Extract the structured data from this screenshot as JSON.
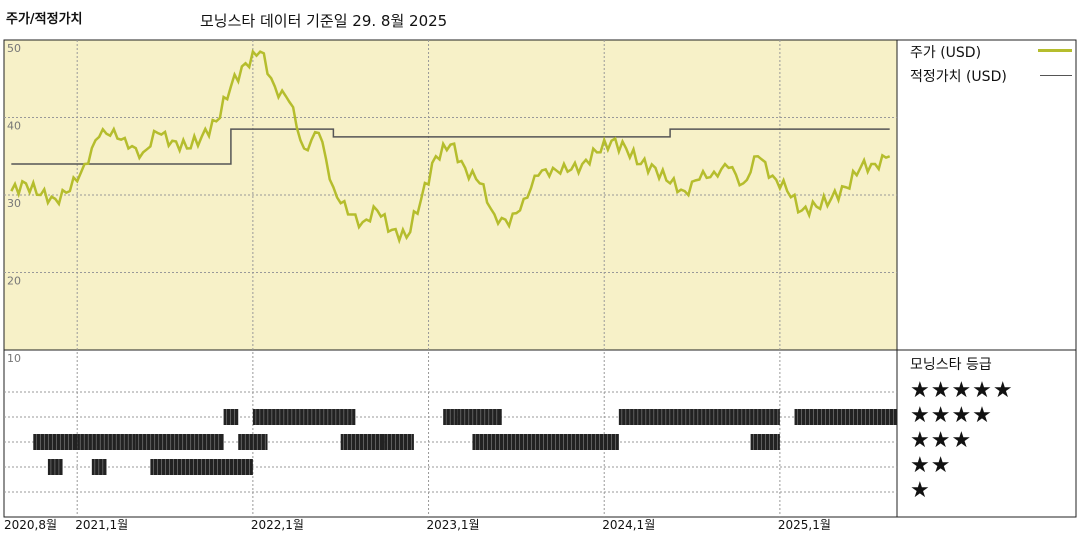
{
  "header": {
    "title": "주가/적정가치",
    "subtitle": "모닝스타 데이터 기준일 29. 8월 2025"
  },
  "legend": {
    "price_label": "주가 (USD)",
    "fair_label": "적정가치 (USD)",
    "price_color": "#b5bd2d",
    "fair_color": "#555555"
  },
  "rating_panel": {
    "title": "모닝스타 등급",
    "stars": [
      "★★★★★",
      "★★★★",
      "★★★",
      "★★",
      "★"
    ]
  },
  "colors": {
    "plot_background": "#f7f1c8",
    "bar": "#222222",
    "grid": "#999999"
  },
  "chart_data": [
    {
      "type": "line",
      "ylim": [
        10,
        50
      ],
      "y_ticks": [
        "50",
        "40",
        "30",
        "20",
        "10"
      ],
      "x_tick_labels": [
        "2020,8월",
        "2021,1월",
        "2022,1월",
        "2023,1월",
        "2024,1월",
        "2025,1월"
      ],
      "grid": true,
      "legend_position": "top-right",
      "series": [
        {
          "name": "주가 (USD)",
          "points": [
            [
              "2020-08",
              30.5
            ],
            [
              "2020-09",
              31.5
            ],
            [
              "2020-10",
              30.0
            ],
            [
              "2020-11",
              29.5
            ],
            [
              "2020-12",
              30.5
            ],
            [
              "2021-01",
              34.0
            ],
            [
              "2021-02",
              37.5
            ],
            [
              "2021-03",
              38.5
            ],
            [
              "2021-04",
              36.0
            ],
            [
              "2021-05",
              35.5
            ],
            [
              "2021-06",
              38.0
            ],
            [
              "2021-07",
              37.0
            ],
            [
              "2021-08",
              36.0
            ],
            [
              "2021-09",
              37.5
            ],
            [
              "2021-10",
              39.5
            ],
            [
              "2021-11",
              44.0
            ],
            [
              "2021-12",
              47.0
            ],
            [
              "2022-01",
              48.5
            ],
            [
              "2022-02",
              44.0
            ],
            [
              "2022-03",
              42.0
            ],
            [
              "2022-04",
              36.0
            ],
            [
              "2022-05",
              38.0
            ],
            [
              "2022-06",
              31.0
            ],
            [
              "2022-07",
              27.5
            ],
            [
              "2022-08",
              26.5
            ],
            [
              "2022-09",
              28.0
            ],
            [
              "2022-10",
              25.5
            ],
            [
              "2022-11",
              24.5
            ],
            [
              "2022-12",
              29.5
            ],
            [
              "2023-01",
              35.0
            ],
            [
              "2023-02",
              36.5
            ],
            [
              "2023-03",
              33.5
            ],
            [
              "2023-04",
              31.5
            ],
            [
              "2023-05",
              27.5
            ],
            [
              "2023-06",
              26.0
            ],
            [
              "2023-07",
              29.5
            ],
            [
              "2023-08",
              32.5
            ],
            [
              "2023-09",
              33.5
            ],
            [
              "2023-10",
              33.0
            ],
            [
              "2023-11",
              34.0
            ],
            [
              "2023-12",
              35.5
            ],
            [
              "2024-01",
              37.0
            ],
            [
              "2024-02",
              36.0
            ],
            [
              "2024-03",
              34.0
            ],
            [
              "2024-04",
              33.5
            ],
            [
              "2024-05",
              31.5
            ],
            [
              "2024-06",
              30.5
            ],
            [
              "2024-07",
              32.0
            ],
            [
              "2024-08",
              33.0
            ],
            [
              "2024-09",
              33.5
            ],
            [
              "2024-10",
              31.5
            ],
            [
              "2024-11",
              35.0
            ],
            [
              "2024-12",
              32.5
            ],
            [
              "2025-01",
              30.5
            ],
            [
              "2025-02",
              28.0
            ],
            [
              "2025-03",
              28.5
            ],
            [
              "2025-04",
              29.5
            ],
            [
              "2025-05",
              31.0
            ],
            [
              "2025-06",
              33.5
            ],
            [
              "2025-07",
              34.0
            ],
            [
              "2025-08",
              35.0
            ]
          ]
        },
        {
          "name": "적정가치 (USD)",
          "points": [
            [
              "2020-08",
              34.0
            ],
            [
              "2021-11",
              34.0
            ],
            [
              "2021-11",
              38.5
            ],
            [
              "2022-06",
              38.5
            ],
            [
              "2022-06",
              37.5
            ],
            [
              "2023-08",
              37.5
            ],
            [
              "2023-11",
              37.5
            ],
            [
              "2024-05",
              37.5
            ],
            [
              "2024-05",
              38.5
            ],
            [
              "2025-08",
              38.5
            ]
          ]
        }
      ]
    },
    {
      "type": "timeline",
      "name": "모닝스타 등급",
      "levels": [
        5,
        4,
        3,
        2,
        1
      ],
      "segments": [
        {
          "rating": 4,
          "from": "2021-11",
          "to": "2021-11"
        },
        {
          "rating": 4,
          "from": "2022-01",
          "to": "2022-07"
        },
        {
          "rating": 4,
          "from": "2023-02",
          "to": "2023-02"
        },
        {
          "rating": 4,
          "from": "2023-03",
          "to": "2023-05"
        },
        {
          "rating": 4,
          "from": "2024-02",
          "to": "2024-12"
        },
        {
          "rating": 4,
          "from": "2025-02",
          "to": "2025-08"
        },
        {
          "rating": 3,
          "from": "2020-10",
          "to": "2020-12"
        },
        {
          "rating": 3,
          "from": "2021-01",
          "to": "2021-04"
        },
        {
          "rating": 3,
          "from": "2021-05",
          "to": "2021-10"
        },
        {
          "rating": 3,
          "from": "2021-12",
          "to": "2022-01"
        },
        {
          "rating": 3,
          "from": "2022-07",
          "to": "2022-09"
        },
        {
          "rating": 3,
          "from": "2022-10",
          "to": "2022-11"
        },
        {
          "rating": 3,
          "from": "2023-04",
          "to": "2024-01"
        },
        {
          "rating": 3,
          "from": "2024-11",
          "to": "2024-12"
        },
        {
          "rating": 2,
          "from": "2020-11",
          "to": "2020-11"
        },
        {
          "rating": 2,
          "from": "2021-02",
          "to": "2021-02"
        },
        {
          "rating": 2,
          "from": "2021-06",
          "to": "2021-12"
        }
      ]
    }
  ]
}
